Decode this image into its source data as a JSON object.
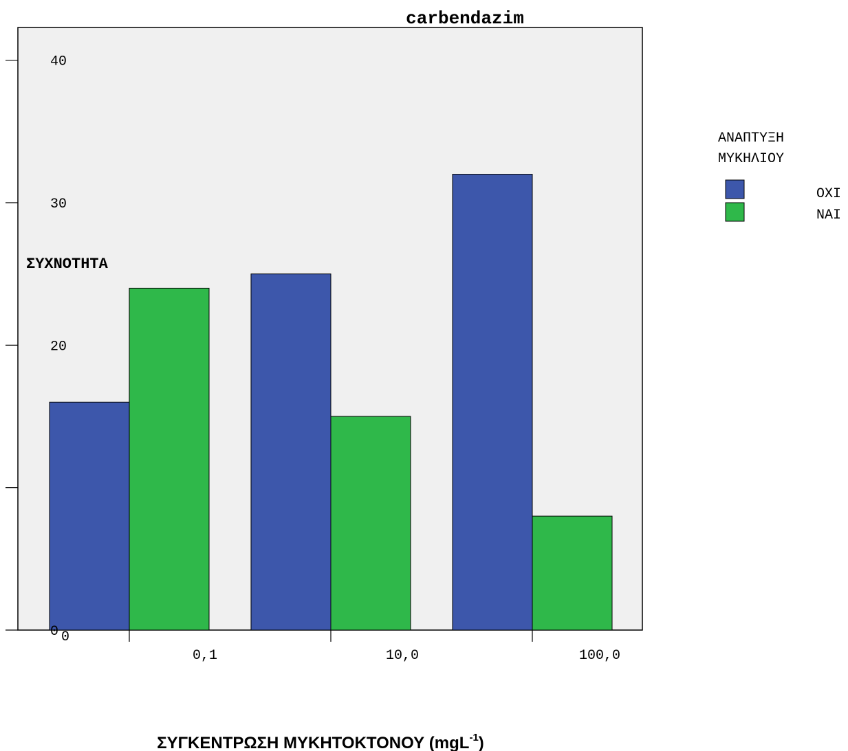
{
  "chart_data": {
    "type": "bar",
    "title": "carbendazim",
    "xlabel": "ΣΥΓΚΕΝΤΡΩΣΗ ΜΥΚΗΤΟΚΤΟΝΟΥ (mgL",
    "xlabel_superscript": "-1",
    "xlabel_suffix": ")",
    "ylabel": "ΣΥΧΝΟΤΗΤΑ",
    "categories": [
      "0,1",
      "10,0",
      "100,0"
    ],
    "series": [
      {
        "name": "ΟΧΙ",
        "color": "#3d57ab",
        "values": [
          16,
          25,
          32
        ]
      },
      {
        "name": "ΝΑΙ",
        "color": "#2fb84a",
        "values": [
          24,
          15,
          8
        ]
      }
    ],
    "ylim": [
      0,
      42.3
    ],
    "yticks": [
      0,
      10,
      20,
      30,
      40
    ],
    "ytick_labels": [
      "0",
      "",
      "20",
      "30",
      "40"
    ],
    "legend": {
      "title_lines": [
        "ΑΝΑΠΤΥΞΗ",
        "ΜΥΚΗΛΙΟΥ"
      ],
      "position": "right"
    },
    "plot_background": "#f0f0f0",
    "grid": false
  }
}
